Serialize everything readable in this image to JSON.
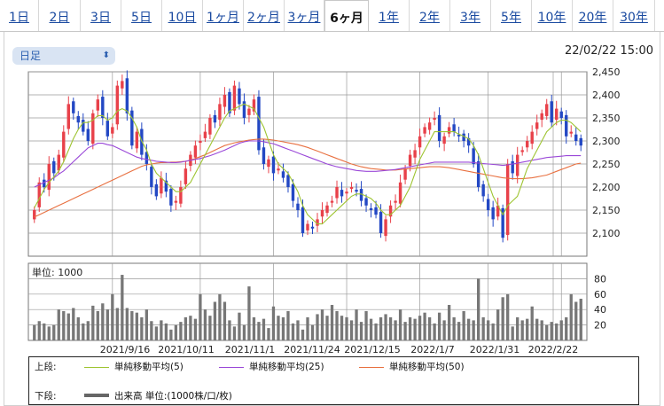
{
  "tabs": [
    {
      "label": "1日"
    },
    {
      "label": "2日"
    },
    {
      "label": "3日"
    },
    {
      "label": "5日"
    },
    {
      "label": "10日"
    },
    {
      "label": "1ヶ月"
    },
    {
      "label": "2ヶ月"
    },
    {
      "label": "3ヶ月"
    },
    {
      "label": "6ヶ月",
      "active": true
    },
    {
      "label": "1年"
    },
    {
      "label": "2年"
    },
    {
      "label": "3年"
    },
    {
      "label": "5年"
    },
    {
      "label": "10年"
    },
    {
      "label": "20年"
    },
    {
      "label": "30年"
    }
  ],
  "selector": {
    "value": "日足"
  },
  "timestamp": "22/02/22 15:00",
  "volume_unit_label": "単位: 1000",
  "legend": {
    "upper_label": "上段:",
    "lower_label": "下段:",
    "ma5": "単純移動平均(5)",
    "ma25": "単純移動平均(25)",
    "ma50": "単純移動平均(50)",
    "volume": "出来高 単位:(1000株/口/枚)"
  },
  "colors": {
    "up": "#e8414a",
    "down": "#2348c4",
    "ma5": "#9ec431",
    "ma25": "#9a48d8",
    "ma50": "#e87040",
    "volume": "#777777",
    "grid": "#9a9a9a"
  },
  "chart_data": [
    {
      "type": "candlestick",
      "x_labels": [
        "2021/9/16",
        "2021/10/11",
        "2021/11/1",
        "2021/11/24",
        "2021/12/15",
        "2022/1/7",
        "2022/1/31",
        "2022/2/22"
      ],
      "ylim": [
        2050,
        2450
      ],
      "yticks": [
        2100,
        2150,
        2200,
        2250,
        2300,
        2350,
        2400,
        2450
      ],
      "close": [
        2150,
        2210,
        2200,
        2250,
        2230,
        2270,
        2320,
        2380,
        2360,
        2340,
        2320,
        2300,
        2360,
        2390,
        2350,
        2310,
        2330,
        2420,
        2430,
        2360,
        2290,
        2320,
        2270,
        2250,
        2200,
        2180,
        2220,
        2190,
        2160,
        2170,
        2200,
        2240,
        2270,
        2290,
        2300,
        2320,
        2350,
        2340,
        2380,
        2400,
        2360,
        2420,
        2380,
        2350,
        2370,
        2390,
        2280,
        2250,
        2260,
        2230,
        2240,
        2220,
        2200,
        2170,
        2150,
        2100,
        2120,
        2110,
        2130,
        2150,
        2160,
        2170,
        2200,
        2180,
        2190,
        2200,
        2190,
        2170,
        2160,
        2150,
        2140,
        2100,
        2130,
        2160,
        2170,
        2210,
        2240,
        2270,
        2280,
        2310,
        2330,
        2340,
        2350,
        2300,
        2310,
        2330,
        2320,
        2310,
        2300,
        2290,
        2250,
        2200,
        2180,
        2150,
        2130,
        2160,
        2090,
        2250,
        2230,
        2270,
        2280,
        2300,
        2320,
        2340,
        2360,
        2380,
        2340,
        2370,
        2350,
        2310,
        2320,
        2300,
        2290
      ],
      "ma5": [
        2155,
        2175,
        2195,
        2210,
        2222,
        2235,
        2255,
        2280,
        2305,
        2325,
        2340,
        2340,
        2345,
        2355,
        2355,
        2345,
        2350,
        2365,
        2370,
        2365,
        2350,
        2330,
        2300,
        2280,
        2250,
        2230,
        2220,
        2210,
        2200,
        2190,
        2190,
        2200,
        2210,
        2230,
        2250,
        2270,
        2290,
        2310,
        2330,
        2350,
        2365,
        2370,
        2375,
        2380,
        2375,
        2370,
        2350,
        2330,
        2300,
        2270,
        2250,
        2240,
        2230,
        2210,
        2190,
        2160,
        2140,
        2130,
        2120,
        2120,
        2130,
        2140,
        2150,
        2160,
        2170,
        2180,
        2185,
        2185,
        2180,
        2175,
        2165,
        2150,
        2140,
        2140,
        2150,
        2160,
        2180,
        2200,
        2230,
        2260,
        2280,
        2300,
        2320,
        2320,
        2320,
        2320,
        2320,
        2315,
        2310,
        2305,
        2290,
        2270,
        2240,
        2210,
        2180,
        2160,
        2140,
        2160,
        2170,
        2180,
        2210,
        2240,
        2260,
        2280,
        2300,
        2320,
        2330,
        2340,
        2345,
        2345,
        2340,
        2330,
        2320
      ],
      "ma25": [
        2200,
        2205,
        2210,
        2215,
        2220,
        2228,
        2235,
        2245,
        2255,
        2265,
        2275,
        2285,
        2290,
        2295,
        2295,
        2292,
        2290,
        2285,
        2280,
        2275,
        2270,
        2265,
        2262,
        2260,
        2258,
        2256,
        2255,
        2254,
        2253,
        2253,
        2254,
        2256,
        2258,
        2260,
        2262,
        2265,
        2268,
        2272,
        2276,
        2280,
        2285,
        2290,
        2295,
        2298,
        2300,
        2300,
        2300,
        2298,
        2296,
        2294,
        2290,
        2286,
        2282,
        2278,
        2274,
        2270,
        2266,
        2262,
        2258,
        2254,
        2250,
        2247,
        2244,
        2242,
        2240,
        2238,
        2236,
        2235,
        2234,
        2234,
        2234,
        2235,
        2236,
        2237,
        2238,
        2240,
        2242,
        2244,
        2246,
        2248,
        2250,
        2252,
        2254,
        2254,
        2254,
        2254,
        2254,
        2254,
        2254,
        2254,
        2253,
        2252,
        2251,
        2250,
        2249,
        2248,
        2247,
        2248,
        2250,
        2252,
        2254,
        2256,
        2258,
        2260,
        2262,
        2264,
        2265,
        2266,
        2267,
        2268,
        2268,
        2268,
        2268
      ],
      "ma50": [
        2135,
        2140,
        2145,
        2150,
        2155,
        2160,
        2165,
        2170,
        2175,
        2180,
        2185,
        2190,
        2195,
        2200,
        2205,
        2210,
        2215,
        2220,
        2225,
        2230,
        2235,
        2240,
        2245,
        2248,
        2250,
        2252,
        2253,
        2253,
        2254,
        2254,
        2255,
        2256,
        2258,
        2262,
        2266,
        2270,
        2275,
        2280,
        2285,
        2290,
        2293,
        2296,
        2298,
        2300,
        2302,
        2303,
        2304,
        2304,
        2303,
        2302,
        2300,
        2298,
        2296,
        2294,
        2292,
        2289,
        2286,
        2282,
        2278,
        2274,
        2270,
        2266,
        2262,
        2258,
        2254,
        2250,
        2247,
        2244,
        2242,
        2240,
        2239,
        2238,
        2237,
        2237,
        2237,
        2238,
        2239,
        2240,
        2241,
        2242,
        2243,
        2244,
        2244,
        2244,
        2243,
        2242,
        2240,
        2238,
        2236,
        2234,
        2232,
        2230,
        2228,
        2226,
        2224,
        2222,
        2220,
        2219,
        2218,
        2218,
        2218,
        2219,
        2220,
        2222,
        2224,
        2226,
        2230,
        2234,
        2238,
        2242,
        2246,
        2250,
        2252
      ]
    },
    {
      "type": "bar",
      "ylim": [
        0,
        100
      ],
      "yticks": [
        20,
        40,
        60,
        80
      ],
      "volume": [
        20,
        25,
        22,
        18,
        20,
        40,
        38,
        35,
        42,
        30,
        22,
        25,
        45,
        38,
        48,
        40,
        60,
        42,
        85,
        42,
        38,
        36,
        30,
        40,
        25,
        18,
        26,
        22,
        14,
        20,
        24,
        30,
        32,
        28,
        60,
        40,
        32,
        50,
        60,
        50,
        26,
        18,
        36,
        20,
        70,
        30,
        24,
        28,
        16,
        44,
        32,
        30,
        38,
        22,
        26,
        14,
        30,
        20,
        34,
        40,
        32,
        46,
        38,
        32,
        30,
        26,
        40,
        24,
        38,
        28,
        22,
        30,
        34,
        30,
        26,
        40,
        24,
        30,
        28,
        32,
        36,
        30,
        22,
        36,
        26,
        46,
        30,
        24,
        38,
        28,
        26,
        80,
        30,
        26,
        22,
        40,
        56,
        60,
        18,
        30,
        26,
        28,
        44,
        28,
        26,
        20,
        24,
        22,
        26,
        30,
        60,
        50,
        54
      ]
    }
  ]
}
